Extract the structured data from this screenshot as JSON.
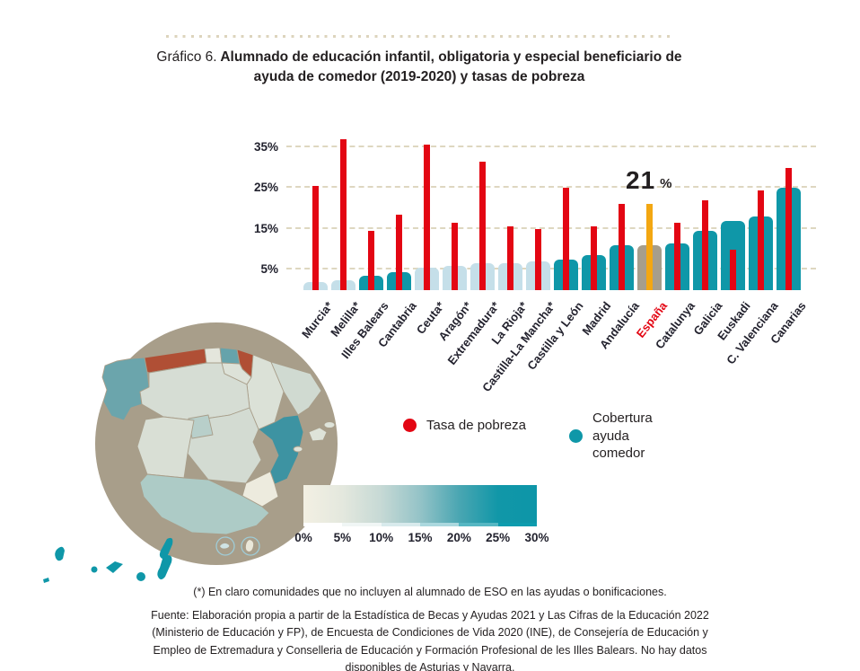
{
  "header": {
    "title_prefix": "Gráfico 6.",
    "title_main": " Alumnado de educación infantil, obligatoria y especial beneficiario de ayuda de comedor (2019-2020) y tasas de pobreza"
  },
  "colors": {
    "poverty_red": "#e30613",
    "coverage_teal": "#0f97a8",
    "coverage_light": "#c5dfe9",
    "espana_bar": "#a69e8c",
    "espana_poverty": "#f3a712",
    "gridline_beige": "#ded7c0",
    "text_dark": "#23222e",
    "no_data_brick": "#b04f35"
  },
  "chart_data": {
    "type": "bar",
    "title": "Alumnado de educación infantil, obligatoria y especial beneficiario de ayuda de comedor (2019-2020) y tasas de pobreza",
    "categories": [
      "Murcia*",
      "Melilla*",
      "Illes Balears",
      "Cantabria",
      "Ceuta*",
      "Aragón*",
      "Extremadura*",
      "La Rioja*",
      "Castilla-La Mancha*",
      "Castilla y León",
      "Madrid",
      "Andalucía",
      "España",
      "Catalunya",
      "Galicia",
      "Euskadi",
      "C. Valenciana",
      "Canarias"
    ],
    "series": [
      {
        "name": "Tasa de pobreza",
        "values": [
          25.5,
          37,
          14.5,
          18.5,
          35.5,
          16.5,
          31.5,
          15.5,
          15,
          25,
          15.5,
          21,
          21,
          16.5,
          22,
          10,
          24.5,
          30
        ]
      },
      {
        "name": "Cobertura ayuda comedor",
        "values": [
          2,
          2.5,
          3.5,
          4.5,
          5.5,
          6,
          6.5,
          6.5,
          7,
          7.5,
          8.5,
          11,
          11,
          11.5,
          14.5,
          17,
          18,
          25
        ]
      }
    ],
    "bar_styles": [
      "light",
      "light",
      "dark",
      "dark",
      "light",
      "light",
      "light",
      "light",
      "light",
      "dark",
      "dark",
      "dark",
      "espana",
      "dark",
      "dark",
      "dark",
      "dark",
      "dark"
    ],
    "highlight": {
      "category": "España",
      "value": "21",
      "unit": "%"
    },
    "y_ticks": [
      {
        "value": 5,
        "label": "5%"
      },
      {
        "value": 15,
        "label": "15%"
      },
      {
        "value": 25,
        "label": "25%"
      },
      {
        "value": 35,
        "label": "35%"
      }
    ],
    "ylim": [
      0,
      40
    ],
    "xlabel": "",
    "ylabel": "",
    "grid": "horizontal dashed",
    "legend_position": "below"
  },
  "legend": {
    "items": [
      {
        "label": "Tasa de pobreza",
        "color": "#e30613"
      },
      {
        "label": "Cobertura ayuda comedor",
        "color": "#0f97a8"
      }
    ]
  },
  "scale": {
    "tick_labels": [
      "0%",
      "5%",
      "10%",
      "15%",
      "20%",
      "25%",
      "30%"
    ],
    "gradient": [
      "#f3f0e3",
      "#e4e8de",
      "#c6d9d5",
      "#94c3c7",
      "#4aa6b2",
      "#1197a8",
      "#0d96a8"
    ],
    "steps": [
      "#ffffff",
      "#f0f6f5",
      "#d8eaec",
      "#abd8de",
      "#56b7c3",
      "#0d9cae"
    ]
  },
  "map": {
    "circle_color": "#a89e8a",
    "regions": {
      "galicia": "#6ba5ac",
      "asturias": "#b04f35",
      "cantabria": "#e4e6dc",
      "euskadi": "#66a3ab",
      "navarra": "#b04f35",
      "la_rioja": "#dde2d8",
      "aragon": "#dbe1d7",
      "catalunya": "#d0dad1",
      "castilla_y_leon": "#d6ddd4",
      "madrid": "#b8cfca",
      "castilla_la_mancha": "#d3dbd2",
      "c_valenciana": "#3d93a2",
      "murcia": "#edebde",
      "extremadura": "#d9dfd5",
      "andalucia": "#adcbc6",
      "illes_balears": "#dee3d9",
      "canarias": "#0f97a8",
      "ceuta_inset": "#cfe3e4",
      "melilla_inset": "#eae8da"
    },
    "no_data": [
      "Asturias",
      "Navarra"
    ]
  },
  "footnotes": {
    "note": "(*) En claro comunidades que no incluyen al alumnado de ESO en las ayudas o bonificaciones.",
    "source": "Fuente: Elaboración propia a partir de la Estadística de Becas y Ayudas 2021 y Las Cifras de la Educación 2022 (Ministerio de Educación y FP), de Encuesta de Condiciones de Vida 2020 (INE), de Consejería de Educación y Empleo de Extremadura y Conselleria de Educación y Formación Profesional de les Illes Balears. No hay datos disponibles de Asturias y Navarra."
  }
}
